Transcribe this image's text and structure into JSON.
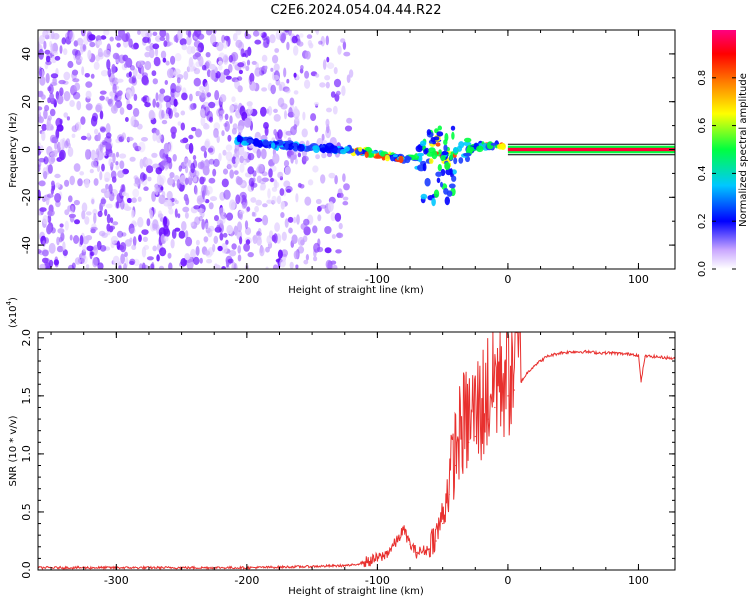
{
  "title": "C2E6.2024.054.04.44.R22",
  "chart_data": [
    {
      "type": "heatmap",
      "xlabel": "Height of straight line (km)",
      "ylabel": "Frequency (Hz)",
      "xlim": [
        -360,
        128
      ],
      "ylim": [
        -50,
        50
      ],
      "xticks": [
        -300,
        -200,
        -100,
        0,
        100
      ],
      "xtick_labels": [
        "-300",
        "-200",
        "-100",
        "0",
        "100"
      ],
      "yticks": [
        -40,
        -20,
        0,
        20,
        40
      ],
      "ytick_labels": [
        "-40",
        "-20",
        "0",
        "20",
        "40"
      ],
      "colorbar": {
        "label": "Normalized spectral amplitude",
        "range": [
          0,
          1
        ],
        "ticks": [
          0.0,
          0.2,
          0.4,
          0.6,
          0.8
        ],
        "tick_labels": [
          "0.0",
          "0.2",
          "0.4",
          "0.6",
          "0.8"
        ],
        "colors": [
          "#ffffff",
          "#a35cff",
          "#0000ff",
          "#00c8ff",
          "#00ff40",
          "#ffff00",
          "#ff7f00",
          "#ff0000",
          "#ff0080"
        ]
      },
      "features": {
        "noise_region_x": [
          -360,
          -120
        ],
        "signal_track": [
          {
            "x": -210,
            "y": 4
          },
          {
            "x": -180,
            "y": 2
          },
          {
            "x": -150,
            "y": 1
          },
          {
            "x": -125,
            "y": 0
          },
          {
            "x": -100,
            "y": -2
          },
          {
            "x": -80,
            "y": -4
          },
          {
            "x": -65,
            "y": -3
          },
          {
            "x": -55,
            "y": 2
          },
          {
            "x": -45,
            "y": -5
          },
          {
            "x": -30,
            "y": 0
          },
          {
            "x": -15,
            "y": 2
          },
          {
            "x": 0,
            "y": 1
          }
        ],
        "steady_line": {
          "x_start": 0,
          "x_end": 128,
          "y": 0
        }
      },
      "grid": false
    },
    {
      "type": "line",
      "xlabel": "Height of straight line (km)",
      "ylabel": "SNR (10 * v/v)",
      "y_multiplier": "(x10^4)",
      "xlim": [
        -360,
        128
      ],
      "ylim": [
        0,
        2.05
      ],
      "xticks": [
        -300,
        -200,
        -100,
        0,
        100
      ],
      "xtick_labels": [
        "-300",
        "-200",
        "-100",
        "0",
        "100"
      ],
      "yticks": [
        0.0,
        0.5,
        1.0,
        1.5,
        2.0
      ],
      "ytick_labels": [
        "0.0",
        "0.5",
        "1.0",
        "1.5",
        "2.0"
      ],
      "color": "#e8302e",
      "series": [
        {
          "x": [
            -360,
            -300,
            -200,
            -150,
            -120,
            -105,
            -95,
            -90,
            -85,
            -80,
            -78,
            -75,
            -70,
            -60,
            -55,
            -50,
            -45,
            -40,
            -35,
            -30,
            -25,
            -20,
            -15,
            -10,
            -5,
            0,
            5,
            10,
            15,
            20,
            25,
            30,
            40,
            50,
            60,
            70,
            80,
            90,
            95,
            100,
            102,
            105,
            110,
            120,
            128
          ],
          "y": [
            0.02,
            0.02,
            0.02,
            0.03,
            0.04,
            0.08,
            0.12,
            0.18,
            0.25,
            0.35,
            0.3,
            0.22,
            0.15,
            0.18,
            0.25,
            0.4,
            0.65,
            0.9,
            1.05,
            1.1,
            1.15,
            1.2,
            1.3,
            1.4,
            1.45,
            1.5,
            1.55,
            1.62,
            1.7,
            1.76,
            1.8,
            1.84,
            1.87,
            1.88,
            1.88,
            1.87,
            1.87,
            1.86,
            1.86,
            1.85,
            1.62,
            1.84,
            1.84,
            1.83,
            1.82
          ]
        }
      ],
      "grid": false
    }
  ]
}
